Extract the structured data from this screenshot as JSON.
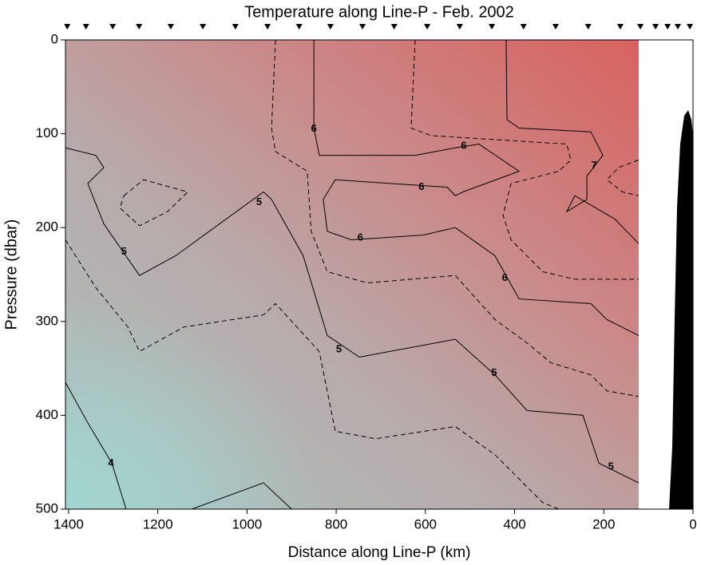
{
  "chart_data": {
    "type": "contour",
    "title": "Temperature along Line-P - Feb. 2002",
    "x_label": "Distance along Line-P (km)",
    "y_label": "Pressure (dbar)",
    "xlim": [
      1407,
      0
    ],
    "ylim": [
      0,
      500
    ],
    "xticks": [
      1400,
      1200,
      1000,
      800,
      600,
      400,
      200,
      0
    ],
    "yticks": [
      0,
      100,
      200,
      300,
      400,
      500
    ],
    "line_color": "#000000",
    "stations": [
      1403,
      1361,
      1301,
      1242,
      1171,
      1099,
      1026,
      954,
      883,
      813,
      741,
      670,
      596,
      523,
      451,
      380,
      308,
      235,
      163,
      118,
      84,
      57,
      34,
      7
    ],
    "contours": [
      {
        "level": 4,
        "x": [
          1407,
          1357,
          1303,
          1271
        ],
        "y": [
          365,
          408,
          451,
          500
        ]
      },
      {
        "level": 4,
        "x": [
          1124,
          963,
          900
        ],
        "y": [
          500,
          472,
          500
        ]
      },
      {
        "level": 4.5,
        "x": [
          1407,
          1339,
          1267,
          1241,
          1142,
          963,
          936,
          838,
          802,
          712,
          533,
          444,
          337,
          301
        ],
        "y": [
          213,
          264,
          306,
          332,
          306,
          293,
          281,
          332,
          417,
          425,
          412,
          442,
          493,
          500
        ]
      },
      {
        "level": 5,
        "x": [
          1407,
          1339,
          1321,
          1357,
          1321,
          1241,
          1160,
          963,
          945,
          874,
          820,
          748,
          533,
          444,
          372,
          247,
          211,
          122
        ],
        "y": [
          115,
          123,
          136,
          153,
          196,
          251,
          230,
          162,
          170,
          230,
          315,
          338,
          319,
          357,
          395,
          400,
          451,
          472
        ]
      },
      {
        "level": 5.5,
        "x": [
          1276,
          1232,
          1133,
          1178,
          1241,
          1285,
          1276
        ],
        "y": [
          166,
          149,
          162,
          183,
          198,
          179,
          166
        ]
      },
      {
        "level": 5.5,
        "x": [
          936,
          945,
          936,
          865,
          856,
          820,
          730,
          533,
          444,
          372,
          319,
          229,
          193,
          122
        ],
        "y": [
          0,
          94,
          119,
          140,
          204,
          247,
          259,
          251,
          298,
          323,
          344,
          357,
          374,
          380
        ]
      },
      {
        "level": 6,
        "x": [
          850,
          850,
          838,
          784,
          623,
          533,
          480,
          390,
          516,
          533,
          551,
          802,
          829,
          820,
          766,
          605,
          533,
          444,
          390,
          229,
          193,
          122
        ],
        "y": [
          0,
          94,
          123,
          123,
          123,
          115,
          111,
          140,
          162,
          166,
          157,
          149,
          170,
          204,
          213,
          208,
          200,
          230,
          276,
          281,
          298,
          315
        ]
      },
      {
        "level": 6.5,
        "x": [
          623,
          632,
          587,
          283,
          274,
          301,
          408,
          426,
          408,
          337,
          265,
          122
        ],
        "y": [
          0,
          94,
          102,
          111,
          128,
          140,
          153,
          187,
          213,
          247,
          255,
          255
        ]
      },
      {
        "level": 7,
        "x": [
          419,
          417,
          390,
          229,
          202,
          238,
          238,
          283,
          265,
          175,
          122
        ],
        "y": [
          0,
          85,
          94,
          98,
          123,
          145,
          170,
          183,
          166,
          191,
          217
        ]
      },
      {
        "level": 7.5,
        "x": [
          122,
          167,
          193,
          158,
          122
        ],
        "y": [
          128,
          136,
          149,
          162,
          166
        ]
      }
    ],
    "contour_labels": [
      {
        "level": 6,
        "x": 850,
        "y": 95
      },
      {
        "level": 6,
        "x": 514,
        "y": 113
      },
      {
        "level": 6,
        "x": 609,
        "y": 157
      },
      {
        "level": 6,
        "x": 746,
        "y": 211
      },
      {
        "level": 6,
        "x": 422,
        "y": 254
      },
      {
        "level": 5,
        "x": 973,
        "y": 173
      },
      {
        "level": 5,
        "x": 1276,
        "y": 226
      },
      {
        "level": 5,
        "x": 794,
        "y": 330
      },
      {
        "level": 5,
        "x": 446,
        "y": 355
      },
      {
        "level": 5,
        "x": 184,
        "y": 455
      },
      {
        "level": 4,
        "x": 1305,
        "y": 451
      },
      {
        "level": 7,
        "x": 222,
        "y": 134
      }
    ]
  }
}
